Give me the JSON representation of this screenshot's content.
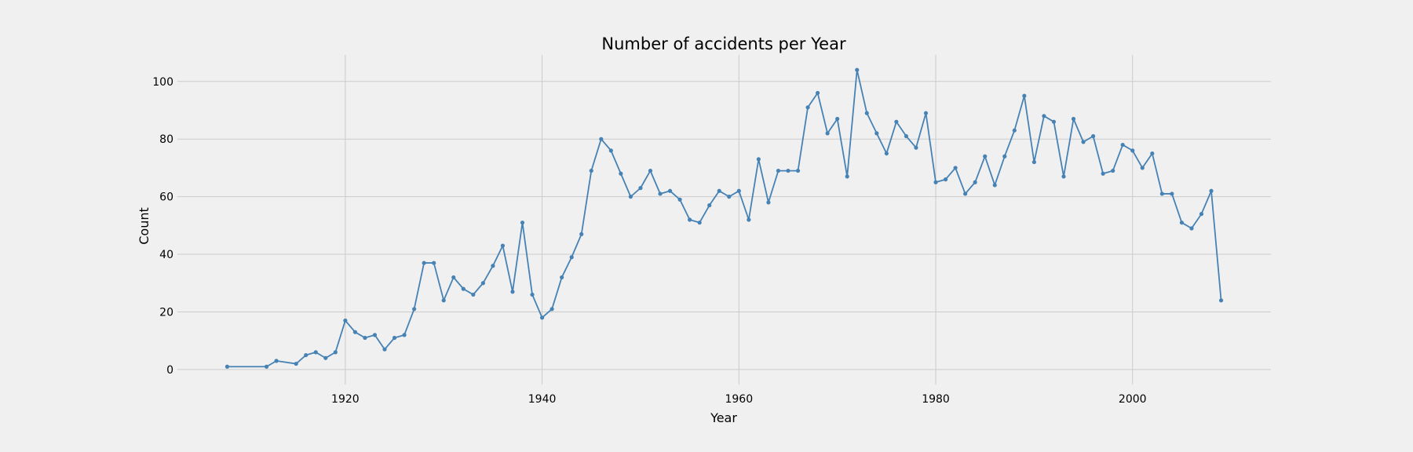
{
  "chart_data": {
    "type": "line",
    "title": "Number of accidents per Year",
    "xlabel": "Year",
    "ylabel": "Count",
    "xlim": [
      1902.94,
      2014.06
    ],
    "ylim": [
      -5.2,
      109.2
    ],
    "xticks": [
      1920,
      1940,
      1960,
      1980,
      2000
    ],
    "yticks": [
      0,
      20,
      40,
      60,
      80,
      100
    ],
    "grid": true,
    "legend": "none",
    "series_color": "#4682b4",
    "background_color": "#f0f0f0",
    "grid_color": "#cbcbcb",
    "series": [
      {
        "marker": "dot",
        "x": [
          1908,
          1912,
          1913,
          1915,
          1916,
          1917,
          1918,
          1919,
          1920,
          1921,
          1922,
          1923,
          1924,
          1925,
          1926,
          1927,
          1928,
          1929,
          1930,
          1931,
          1932,
          1933,
          1934,
          1935,
          1936,
          1937,
          1938,
          1939,
          1940,
          1941,
          1942,
          1943,
          1944,
          1945,
          1946,
          1947,
          1948,
          1949,
          1950,
          1951,
          1952,
          1953,
          1954,
          1955,
          1956,
          1957,
          1958,
          1959,
          1960,
          1961,
          1962,
          1963,
          1964,
          1965,
          1966,
          1967,
          1968,
          1969,
          1970,
          1971,
          1972,
          1973,
          1974,
          1975,
          1976,
          1977,
          1978,
          1979,
          1980,
          1981,
          1982,
          1983,
          1984,
          1985,
          1986,
          1987,
          1988,
          1989,
          1990,
          1991,
          1992,
          1993,
          1994,
          1995,
          1996,
          1997,
          1998,
          1999,
          2000,
          2001,
          2002,
          2003,
          2004,
          2005,
          2006,
          2007,
          2008,
          2009
        ],
        "y": [
          1,
          1,
          3,
          2,
          5,
          6,
          4,
          6,
          17,
          13,
          11,
          12,
          7,
          11,
          12,
          21,
          37,
          37,
          24,
          32,
          28,
          26,
          30,
          36,
          43,
          27,
          51,
          26,
          18,
          21,
          32,
          39,
          47,
          69,
          80,
          76,
          68,
          60,
          63,
          69,
          61,
          62,
          59,
          52,
          51,
          57,
          62,
          60,
          62,
          52,
          73,
          58,
          69,
          69,
          69,
          91,
          96,
          82,
          87,
          67,
          104,
          89,
          82,
          75,
          86,
          81,
          77,
          89,
          65,
          66,
          70,
          61,
          65,
          74,
          64,
          74,
          83,
          95,
          72,
          88,
          86,
          67,
          87,
          79,
          81,
          68,
          69,
          78,
          76,
          70,
          75,
          61,
          61,
          51,
          49,
          54,
          62,
          24
        ]
      }
    ]
  }
}
